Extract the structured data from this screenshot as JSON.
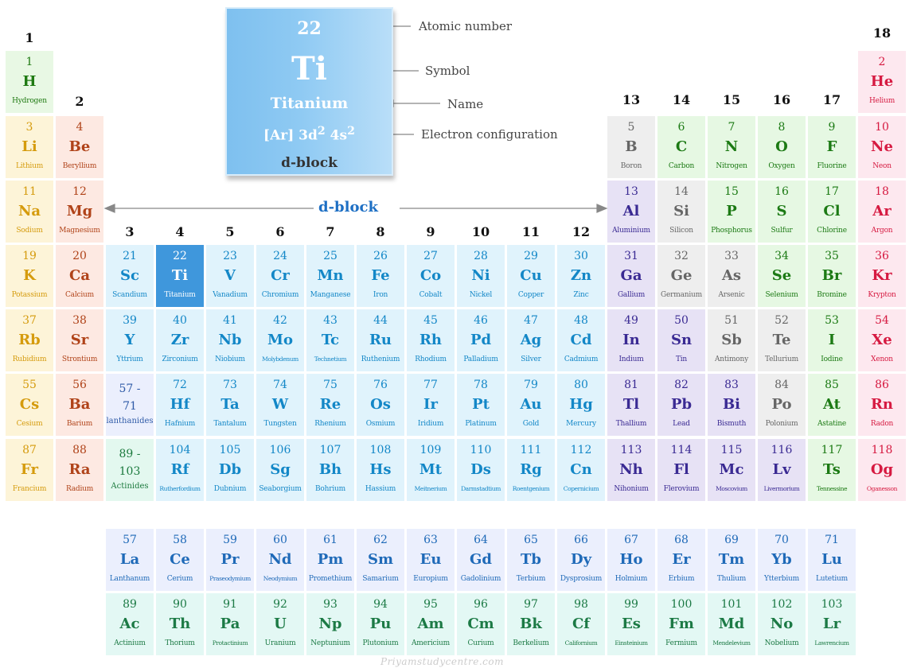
{
  "legend": {
    "number": "22",
    "symbol": "Ti",
    "name": "Titanium",
    "config_base": "[Ar] 3d",
    "config_sup1": "2",
    "config_mid": " 4s",
    "config_sup2": "2",
    "block": "d-block",
    "callouts": {
      "number": "Atomic number",
      "symbol": "Symbol",
      "name": "Name",
      "config": "Electron configuration"
    }
  },
  "dblock_label": "d-block",
  "watermark": "Priyamstudycentre.com",
  "colors": {
    "s1": {
      "bg": "#e8f8e4",
      "fg": "#1f7a12"
    },
    "alkali": {
      "bg": "#fdf4d8",
      "fg": "#d59b0d"
    },
    "alkaline": {
      "bg": "#fde9e2",
      "fg": "#b04319"
    },
    "transition": {
      "bg": "#e0f3fc",
      "fg": "#1387c7"
    },
    "highlight": {
      "bg": "#3f97dc",
      "fg": "#ffffff"
    },
    "lanthanide_ph": {
      "bg": "#ebeffd",
      "fg": "#2e5aa7"
    },
    "actinide_ph": {
      "bg": "#e3f8ef",
      "fg": "#1c7a3e"
    },
    "post": {
      "bg": "#e7e2f5",
      "fg": "#3a2a93"
    },
    "metalloid": {
      "bg": "#eeeeee",
      "fg": "#666666"
    },
    "nonmetal": {
      "bg": "#e6f8e3",
      "fg": "#1c7a14"
    },
    "halogen": {
      "bg": "#e6f8e3",
      "fg": "#1c7a14"
    },
    "noble": {
      "bg": "#fde8ef",
      "fg": "#d61a41"
    },
    "lanthanide": {
      "bg": "#ebeffd",
      "fg": "#1f6ab8"
    },
    "actinide": {
      "bg": "#e3f8f4",
      "fg": "#1c7a45"
    }
  },
  "groups": [
    "1",
    "2",
    "3",
    "4",
    "5",
    "6",
    "7",
    "8",
    "9",
    "10",
    "11",
    "12",
    "13",
    "14",
    "15",
    "16",
    "17",
    "18"
  ],
  "elements": [
    {
      "n": "1",
      "s": "H",
      "name": "Hydrogen",
      "g": 1,
      "p": 1,
      "c": "s1"
    },
    {
      "n": "2",
      "s": "He",
      "name": "Helium",
      "g": 18,
      "p": 1,
      "c": "noble"
    },
    {
      "n": "3",
      "s": "Li",
      "name": "Lithium",
      "g": 1,
      "p": 2,
      "c": "alkali"
    },
    {
      "n": "4",
      "s": "Be",
      "name": "Beryllium",
      "g": 2,
      "p": 2,
      "c": "alkaline"
    },
    {
      "n": "5",
      "s": "B",
      "name": "Boron",
      "g": 13,
      "p": 2,
      "c": "metalloid"
    },
    {
      "n": "6",
      "s": "C",
      "name": "Carbon",
      "g": 14,
      "p": 2,
      "c": "nonmetal"
    },
    {
      "n": "7",
      "s": "N",
      "name": "Nitrogen",
      "g": 15,
      "p": 2,
      "c": "nonmetal"
    },
    {
      "n": "8",
      "s": "O",
      "name": "Oxygen",
      "g": 16,
      "p": 2,
      "c": "nonmetal"
    },
    {
      "n": "9",
      "s": "F",
      "name": "Fluorine",
      "g": 17,
      "p": 2,
      "c": "halogen"
    },
    {
      "n": "10",
      "s": "Ne",
      "name": "Neon",
      "g": 18,
      "p": 2,
      "c": "noble"
    },
    {
      "n": "11",
      "s": "Na",
      "name": "Sodium",
      "g": 1,
      "p": 3,
      "c": "alkali"
    },
    {
      "n": "12",
      "s": "Mg",
      "name": "Magnesium",
      "g": 2,
      "p": 3,
      "c": "alkaline"
    },
    {
      "n": "13",
      "s": "Al",
      "name": "Aluminium",
      "g": 13,
      "p": 3,
      "c": "post"
    },
    {
      "n": "14",
      "s": "Si",
      "name": "Silicon",
      "g": 14,
      "p": 3,
      "c": "metalloid"
    },
    {
      "n": "15",
      "s": "P",
      "name": "Phosphorus",
      "g": 15,
      "p": 3,
      "c": "nonmetal"
    },
    {
      "n": "16",
      "s": "S",
      "name": "Sulfur",
      "g": 16,
      "p": 3,
      "c": "nonmetal"
    },
    {
      "n": "17",
      "s": "Cl",
      "name": "Chlorine",
      "g": 17,
      "p": 3,
      "c": "halogen"
    },
    {
      "n": "18",
      "s": "Ar",
      "name": "Argon",
      "g": 18,
      "p": 3,
      "c": "noble"
    },
    {
      "n": "19",
      "s": "K",
      "name": "Potassium",
      "g": 1,
      "p": 4,
      "c": "alkali"
    },
    {
      "n": "20",
      "s": "Ca",
      "name": "Calcium",
      "g": 2,
      "p": 4,
      "c": "alkaline"
    },
    {
      "n": "21",
      "s": "Sc",
      "name": "Scandium",
      "g": 3,
      "p": 4,
      "c": "transition"
    },
    {
      "n": "22",
      "s": "Ti",
      "name": "Titanium",
      "g": 4,
      "p": 4,
      "c": "highlight"
    },
    {
      "n": "23",
      "s": "V",
      "name": "Vanadium",
      "g": 5,
      "p": 4,
      "c": "transition"
    },
    {
      "n": "24",
      "s": "Cr",
      "name": "Chromium",
      "g": 6,
      "p": 4,
      "c": "transition"
    },
    {
      "n": "25",
      "s": "Mn",
      "name": "Manganese",
      "g": 7,
      "p": 4,
      "c": "transition"
    },
    {
      "n": "26",
      "s": "Fe",
      "name": "Iron",
      "g": 8,
      "p": 4,
      "c": "transition"
    },
    {
      "n": "27",
      "s": "Co",
      "name": "Cobalt",
      "g": 9,
      "p": 4,
      "c": "transition"
    },
    {
      "n": "28",
      "s": "Ni",
      "name": "Nickel",
      "g": 10,
      "p": 4,
      "c": "transition"
    },
    {
      "n": "29",
      "s": "Cu",
      "name": "Copper",
      "g": 11,
      "p": 4,
      "c": "transition"
    },
    {
      "n": "30",
      "s": "Zn",
      "name": "Zinc",
      "g": 12,
      "p": 4,
      "c": "transition"
    },
    {
      "n": "31",
      "s": "Ga",
      "name": "Gallium",
      "g": 13,
      "p": 4,
      "c": "post"
    },
    {
      "n": "32",
      "s": "Ge",
      "name": "Germanium",
      "g": 14,
      "p": 4,
      "c": "metalloid"
    },
    {
      "n": "33",
      "s": "As",
      "name": "Arsenic",
      "g": 15,
      "p": 4,
      "c": "metalloid"
    },
    {
      "n": "34",
      "s": "Se",
      "name": "Selenium",
      "g": 16,
      "p": 4,
      "c": "nonmetal"
    },
    {
      "n": "35",
      "s": "Br",
      "name": "Bromine",
      "g": 17,
      "p": 4,
      "c": "halogen"
    },
    {
      "n": "36",
      "s": "Kr",
      "name": "Krypton",
      "g": 18,
      "p": 4,
      "c": "noble"
    },
    {
      "n": "37",
      "s": "Rb",
      "name": "Rubidium",
      "g": 1,
      "p": 5,
      "c": "alkali"
    },
    {
      "n": "38",
      "s": "Sr",
      "name": "Strontium",
      "g": 2,
      "p": 5,
      "c": "alkaline"
    },
    {
      "n": "39",
      "s": "Y",
      "name": "Yttrium",
      "g": 3,
      "p": 5,
      "c": "transition"
    },
    {
      "n": "40",
      "s": "Zr",
      "name": "Zirconium",
      "g": 4,
      "p": 5,
      "c": "transition"
    },
    {
      "n": "41",
      "s": "Nb",
      "name": "Niobium",
      "g": 5,
      "p": 5,
      "c": "transition"
    },
    {
      "n": "42",
      "s": "Mo",
      "name": "Molybdenum",
      "g": 6,
      "p": 5,
      "c": "transition",
      "tiny": true
    },
    {
      "n": "43",
      "s": "Tc",
      "name": "Technetium",
      "g": 7,
      "p": 5,
      "c": "transition",
      "tiny": true
    },
    {
      "n": "44",
      "s": "Ru",
      "name": "Ruthenium",
      "g": 8,
      "p": 5,
      "c": "transition"
    },
    {
      "n": "45",
      "s": "Rh",
      "name": "Rhodium",
      "g": 9,
      "p": 5,
      "c": "transition"
    },
    {
      "n": "46",
      "s": "Pd",
      "name": "Palladium",
      "g": 10,
      "p": 5,
      "c": "transition"
    },
    {
      "n": "47",
      "s": "Ag",
      "name": "Silver",
      "g": 11,
      "p": 5,
      "c": "transition"
    },
    {
      "n": "48",
      "s": "Cd",
      "name": "Cadmium",
      "g": 12,
      "p": 5,
      "c": "transition"
    },
    {
      "n": "49",
      "s": "In",
      "name": "Indium",
      "g": 13,
      "p": 5,
      "c": "post"
    },
    {
      "n": "50",
      "s": "Sn",
      "name": "Tin",
      "g": 14,
      "p": 5,
      "c": "post"
    },
    {
      "n": "51",
      "s": "Sb",
      "name": "Antimony",
      "g": 15,
      "p": 5,
      "c": "metalloid"
    },
    {
      "n": "52",
      "s": "Te",
      "name": "Tellurium",
      "g": 16,
      "p": 5,
      "c": "metalloid"
    },
    {
      "n": "53",
      "s": "I",
      "name": "Iodine",
      "g": 17,
      "p": 5,
      "c": "halogen"
    },
    {
      "n": "54",
      "s": "Xe",
      "name": "Xenon",
      "g": 18,
      "p": 5,
      "c": "noble"
    },
    {
      "n": "55",
      "s": "Cs",
      "name": "Cesium",
      "g": 1,
      "p": 6,
      "c": "alkali"
    },
    {
      "n": "56",
      "s": "Ba",
      "name": "Barium",
      "g": 2,
      "p": 6,
      "c": "alkaline"
    },
    {
      "n": "72",
      "s": "Hf",
      "name": "Hafnium",
      "g": 4,
      "p": 6,
      "c": "transition"
    },
    {
      "n": "73",
      "s": "Ta",
      "name": "Tantalum",
      "g": 5,
      "p": 6,
      "c": "transition"
    },
    {
      "n": "74",
      "s": "W",
      "name": "Tungsten",
      "g": 6,
      "p": 6,
      "c": "transition"
    },
    {
      "n": "75",
      "s": "Re",
      "name": "Rhenium",
      "g": 7,
      "p": 6,
      "c": "transition"
    },
    {
      "n": "76",
      "s": "Os",
      "name": "Osmium",
      "g": 8,
      "p": 6,
      "c": "transition"
    },
    {
      "n": "77",
      "s": "Ir",
      "name": "Iridium",
      "g": 9,
      "p": 6,
      "c": "transition"
    },
    {
      "n": "78",
      "s": "Pt",
      "name": "Platinum",
      "g": 10,
      "p": 6,
      "c": "transition"
    },
    {
      "n": "79",
      "s": "Au",
      "name": "Gold",
      "g": 11,
      "p": 6,
      "c": "transition"
    },
    {
      "n": "80",
      "s": "Hg",
      "name": "Mercury",
      "g": 12,
      "p": 6,
      "c": "transition"
    },
    {
      "n": "81",
      "s": "Tl",
      "name": "Thallium",
      "g": 13,
      "p": 6,
      "c": "post"
    },
    {
      "n": "82",
      "s": "Pb",
      "name": "Lead",
      "g": 14,
      "p": 6,
      "c": "post"
    },
    {
      "n": "83",
      "s": "Bi",
      "name": "Bismuth",
      "g": 15,
      "p": 6,
      "c": "post"
    },
    {
      "n": "84",
      "s": "Po",
      "name": "Polonium",
      "g": 16,
      "p": 6,
      "c": "metalloid"
    },
    {
      "n": "85",
      "s": "At",
      "name": "Astatine",
      "g": 17,
      "p": 6,
      "c": "halogen"
    },
    {
      "n": "86",
      "s": "Rn",
      "name": "Radon",
      "g": 18,
      "p": 6,
      "c": "noble"
    },
    {
      "n": "87",
      "s": "Fr",
      "name": "Francium",
      "g": 1,
      "p": 7,
      "c": "alkali"
    },
    {
      "n": "88",
      "s": "Ra",
      "name": "Radium",
      "g": 2,
      "p": 7,
      "c": "alkaline"
    },
    {
      "n": "104",
      "s": "Rf",
      "name": "Rutherfordium",
      "g": 4,
      "p": 7,
      "c": "transition",
      "tiny": true
    },
    {
      "n": "105",
      "s": "Db",
      "name": "Dubnium",
      "g": 5,
      "p": 7,
      "c": "transition"
    },
    {
      "n": "106",
      "s": "Sg",
      "name": "Seaborgium",
      "g": 6,
      "p": 7,
      "c": "transition"
    },
    {
      "n": "107",
      "s": "Bh",
      "name": "Bohrium",
      "g": 7,
      "p": 7,
      "c": "transition"
    },
    {
      "n": "108",
      "s": "Hs",
      "name": "Hassium",
      "g": 8,
      "p": 7,
      "c": "transition"
    },
    {
      "n": "109",
      "s": "Mt",
      "name": "Meitnerium",
      "g": 9,
      "p": 7,
      "c": "transition",
      "tiny": true
    },
    {
      "n": "110",
      "s": "Ds",
      "name": "Darmstadtium",
      "g": 10,
      "p": 7,
      "c": "transition",
      "tiny": true
    },
    {
      "n": "111",
      "s": "Rg",
      "name": "Roentgenium",
      "g": 11,
      "p": 7,
      "c": "transition",
      "tiny": true
    },
    {
      "n": "112",
      "s": "Cn",
      "name": "Copernicium",
      "g": 12,
      "p": 7,
      "c": "transition",
      "tiny": true
    },
    {
      "n": "113",
      "s": "Nh",
      "name": "Nihonium",
      "g": 13,
      "p": 7,
      "c": "post"
    },
    {
      "n": "114",
      "s": "Fl",
      "name": "Flerovium",
      "g": 14,
      "p": 7,
      "c": "post"
    },
    {
      "n": "115",
      "s": "Mc",
      "name": "Moscovium",
      "g": 15,
      "p": 7,
      "c": "post",
      "tiny": true
    },
    {
      "n": "116",
      "s": "Lv",
      "name": "Livermorium",
      "g": 16,
      "p": 7,
      "c": "post",
      "tiny": true
    },
    {
      "n": "117",
      "s": "Ts",
      "name": "Tennessine",
      "g": 17,
      "p": 7,
      "c": "halogen",
      "tiny": true
    },
    {
      "n": "118",
      "s": "Og",
      "name": "Oganesson",
      "g": 18,
      "p": 7,
      "c": "noble",
      "tiny": true
    }
  ],
  "placeholders": [
    {
      "range_a": "57 -",
      "range_b": "71",
      "label": "lanthanides",
      "g": 3,
      "p": 6,
      "c": "lanthanide_ph"
    },
    {
      "range_a": "89 -",
      "range_b": "103",
      "label": "Actinides",
      "g": 3,
      "p": 7,
      "c": "actinide_ph"
    }
  ],
  "lanthanides": [
    {
      "n": "57",
      "s": "La",
      "name": "Lanthanum"
    },
    {
      "n": "58",
      "s": "Ce",
      "name": "Cerium"
    },
    {
      "n": "59",
      "s": "Pr",
      "name": "Praseodymium",
      "tiny": true
    },
    {
      "n": "60",
      "s": "Nd",
      "name": "Neodymium",
      "tiny": true
    },
    {
      "n": "61",
      "s": "Pm",
      "name": "Promethium"
    },
    {
      "n": "62",
      "s": "Sm",
      "name": "Samarium"
    },
    {
      "n": "63",
      "s": "Eu",
      "name": "Europium"
    },
    {
      "n": "64",
      "s": "Gd",
      "name": "Gadolinium"
    },
    {
      "n": "65",
      "s": "Tb",
      "name": "Terbium"
    },
    {
      "n": "66",
      "s": "Dy",
      "name": "Dysprosium"
    },
    {
      "n": "67",
      "s": "Ho",
      "name": "Holmium"
    },
    {
      "n": "68",
      "s": "Er",
      "name": "Erbium"
    },
    {
      "n": "69",
      "s": "Tm",
      "name": "Thulium"
    },
    {
      "n": "70",
      "s": "Yb",
      "name": "Ytterbium"
    },
    {
      "n": "71",
      "s": "Lu",
      "name": "Lutetium"
    }
  ],
  "actinides": [
    {
      "n": "89",
      "s": "Ac",
      "name": "Actinium"
    },
    {
      "n": "90",
      "s": "Th",
      "name": "Thorium"
    },
    {
      "n": "91",
      "s": "Pa",
      "name": "Protactinium",
      "tiny": true
    },
    {
      "n": "92",
      "s": "U",
      "name": "Uranium"
    },
    {
      "n": "93",
      "s": "Np",
      "name": "Neptunium"
    },
    {
      "n": "94",
      "s": "Pu",
      "name": "Plutonium"
    },
    {
      "n": "95",
      "s": "Am",
      "name": "Americium"
    },
    {
      "n": "96",
      "s": "Cm",
      "name": "Curium"
    },
    {
      "n": "97",
      "s": "Bk",
      "name": "Berkelium"
    },
    {
      "n": "98",
      "s": "Cf",
      "name": "Californium",
      "tiny": true
    },
    {
      "n": "99",
      "s": "Es",
      "name": "Einsteinium",
      "tiny": true
    },
    {
      "n": "100",
      "s": "Fm",
      "name": "Fermium"
    },
    {
      "n": "101",
      "s": "Md",
      "name": "Mendelevium",
      "tiny": true
    },
    {
      "n": "102",
      "s": "No",
      "name": "Nobelium"
    },
    {
      "n": "103",
      "s": "Lr",
      "name": "Lawrencium",
      "tiny": true
    }
  ]
}
